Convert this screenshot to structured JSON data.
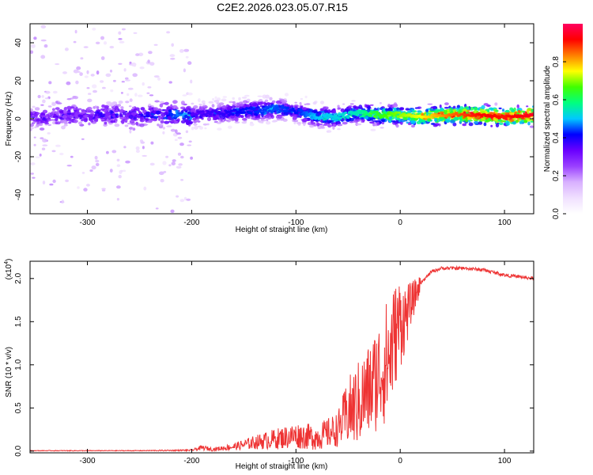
{
  "title": "C2E2.2026.023.05.07.R15",
  "chart_data": [
    {
      "type": "heatmap",
      "name": "spectrogram",
      "xlabel": "Height of straight line (km)",
      "ylabel": "Frequency (Hz)",
      "xlim": [
        -355,
        128
      ],
      "ylim": [
        -50,
        50
      ],
      "xticks": [
        -300,
        -200,
        -100,
        0,
        100
      ],
      "xtick_labels": [
        "-300",
        "-200",
        "-100",
        "0",
        "100"
      ],
      "yticks": [
        -40,
        -20,
        0,
        20,
        40
      ],
      "ytick_labels": [
        "-40",
        "-20",
        "0",
        "20",
        "40"
      ],
      "colorbar": {
        "label": "Normalized spectral amplitude",
        "range": [
          0,
          1
        ],
        "ticks": [
          0.0,
          0.2,
          0.4,
          0.6,
          0.8
        ],
        "tick_labels": [
          "0.0",
          "0.2",
          "0.4",
          "0.6",
          "0.8"
        ],
        "colors": [
          "#ffffff",
          "#f0e0ff",
          "#d8b0ff",
          "#9a40ff",
          "#6a00ff",
          "#0000ff",
          "#00c8ff",
          "#00ff80",
          "#40ff00",
          "#ffff00",
          "#ff8000",
          "#ff0000",
          "#ff0060"
        ]
      },
      "ridge": {
        "x": [
          -355,
          -300,
          -250,
          -200,
          -170,
          -150,
          -120,
          -100,
          -80,
          -60,
          -40,
          -20,
          0,
          20,
          50,
          80,
          100,
          128
        ],
        "center_hz": [
          1,
          2,
          2,
          2,
          3,
          4,
          5,
          4,
          1,
          1,
          3,
          2,
          2,
          1,
          2,
          2,
          1,
          2
        ],
        "peak_amplitude": [
          0.18,
          0.2,
          0.22,
          0.35,
          0.38,
          0.42,
          0.45,
          0.42,
          0.5,
          0.52,
          0.55,
          0.65,
          0.7,
          0.75,
          0.85,
          0.92,
          0.9,
          0.95
        ]
      }
    },
    {
      "type": "line",
      "name": "snr",
      "xlabel": "Height of straight line (km)",
      "ylabel": "SNR (10 * v/v)",
      "y_multiplier": "(x10",
      "y_multiplier_exp": "4",
      "xlim": [
        -355,
        128
      ],
      "ylim": [
        -0.02,
        2.2
      ],
      "xticks": [
        -300,
        -200,
        -100,
        0,
        100
      ],
      "xtick_labels": [
        "-300",
        "-200",
        "-100",
        "0",
        "100"
      ],
      "yticks": [
        0.0,
        0.5,
        1.0,
        1.5,
        2.0
      ],
      "ytick_labels": [
        "0.0",
        "0.5",
        "1.0",
        "1.5",
        "2.0"
      ],
      "color": "#ee3333",
      "envelope": {
        "x": [
          -355,
          -250,
          -200,
          -190,
          -180,
          -160,
          -140,
          -120,
          -100,
          -80,
          -60,
          -50,
          -40,
          -30,
          -20,
          -10,
          -5,
          0,
          5,
          10,
          20,
          30,
          40,
          60,
          80,
          100,
          128
        ],
        "mean": [
          0.005,
          0.005,
          0.01,
          0.04,
          0.02,
          0.05,
          0.1,
          0.14,
          0.18,
          0.16,
          0.25,
          0.45,
          0.55,
          0.7,
          0.9,
          1.1,
          1.35,
          1.5,
          1.55,
          1.7,
          1.95,
          2.08,
          2.12,
          2.12,
          2.1,
          2.04,
          2.0
        ],
        "spread": [
          0.004,
          0.004,
          0.01,
          0.03,
          0.02,
          0.04,
          0.08,
          0.12,
          0.15,
          0.15,
          0.2,
          0.4,
          0.5,
          0.55,
          0.65,
          0.75,
          0.6,
          0.55,
          0.4,
          0.25,
          0.1,
          0.03,
          0.02,
          0.02,
          0.02,
          0.02,
          0.02
        ]
      }
    }
  ]
}
